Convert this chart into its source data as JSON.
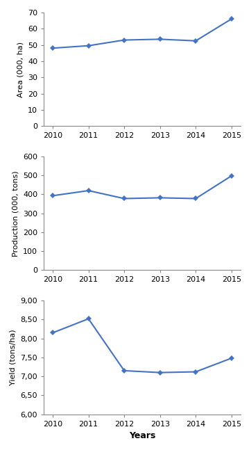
{
  "years": [
    2010,
    2011,
    2012,
    2013,
    2014,
    2015
  ],
  "area": [
    48,
    49.5,
    53,
    53.5,
    52.5,
    66
  ],
  "production": [
    393,
    420,
    378,
    382,
    378,
    498
  ],
  "yield": [
    8.15,
    8.52,
    7.15,
    7.1,
    7.12,
    7.48
  ],
  "area_ylabel": "Area (000, ha)",
  "production_ylabel": "Production (000, tons)",
  "yield_ylabel": "Yield (tons/ha)",
  "xlabel": "Years",
  "area_ylim": [
    0,
    70
  ],
  "area_yticks": [
    0,
    10,
    20,
    30,
    40,
    50,
    60,
    70
  ],
  "production_ylim": [
    0,
    600
  ],
  "production_yticks": [
    0,
    100,
    200,
    300,
    400,
    500,
    600
  ],
  "yield_ylim": [
    6.0,
    9.0
  ],
  "yield_ytick_labels": [
    "6,00",
    "6,50",
    "7,00",
    "7,50",
    "8,00",
    "8,50",
    "9,00"
  ],
  "yield_yticks": [
    6.0,
    6.5,
    7.0,
    7.5,
    8.0,
    8.5,
    9.0
  ],
  "line_color": "#4472C4",
  "marker": "D",
  "marker_size": 4,
  "line_width": 1.5,
  "tick_fontsize": 8,
  "ylabel_fontsize": 8,
  "xlabel_fontsize": 9,
  "background_color": "#ffffff",
  "spine_color": "#888888"
}
